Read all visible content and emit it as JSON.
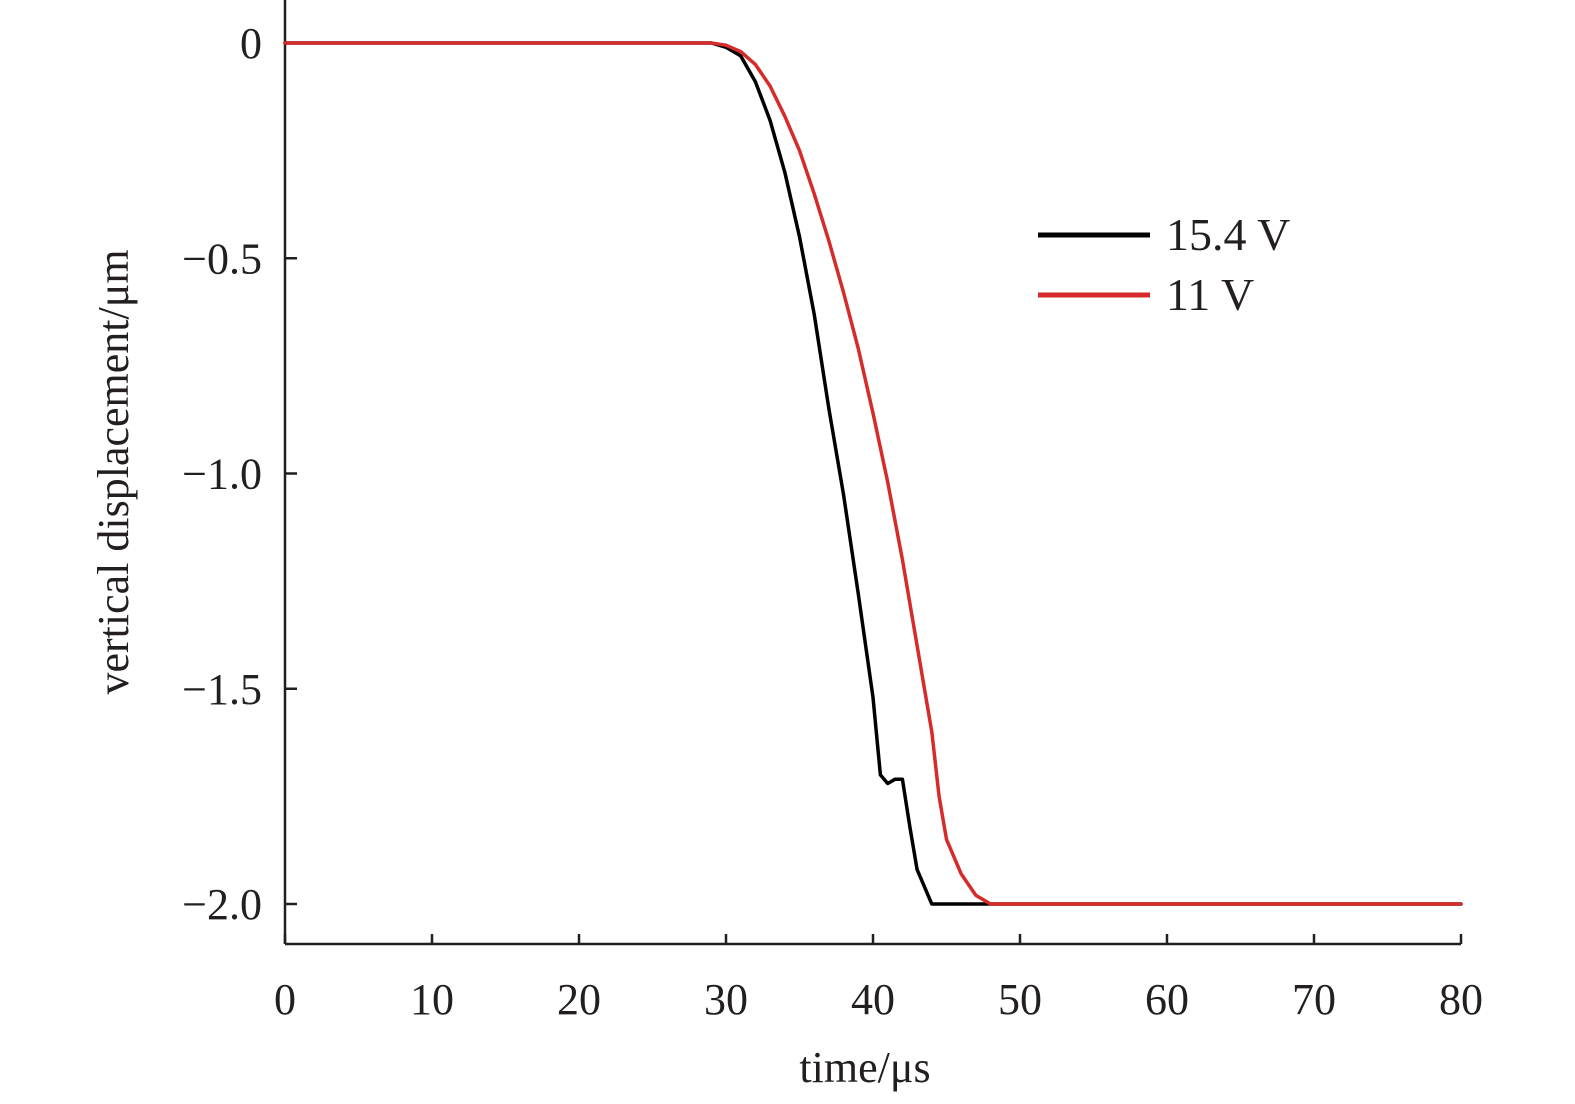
{
  "chart_data": {
    "type": "line",
    "title": "",
    "xlabel": "time/μs",
    "ylabel": "vertical displacement/μm",
    "xlim": [
      0,
      80
    ],
    "ylim": [
      -2.1,
      0.1
    ],
    "xticks": [
      0,
      10,
      20,
      30,
      40,
      50,
      60,
      70,
      80
    ],
    "xtick_labels": [
      "0",
      "10",
      "20",
      "30",
      "40",
      "50",
      "60",
      "70",
      "80"
    ],
    "yticks": [
      0,
      -0.5,
      -1.0,
      -1.5,
      -2.0
    ],
    "ytick_labels": [
      "0",
      "−0.5",
      "−1.0",
      "−1.5",
      "−2.0"
    ],
    "grid": false,
    "legend_position": "top-right",
    "series": [
      {
        "name": "15.4 V",
        "color": "#000000",
        "x": [
          0,
          28,
          29,
          30,
          31,
          32,
          33,
          34,
          35,
          36,
          37,
          38,
          39,
          40,
          40.5,
          41,
          41.5,
          42,
          42.5,
          43,
          44,
          45,
          46,
          48,
          80
        ],
        "y": [
          0,
          0,
          0,
          -0.01,
          -0.03,
          -0.09,
          -0.18,
          -0.3,
          -0.45,
          -0.63,
          -0.85,
          -1.05,
          -1.28,
          -1.52,
          -1.7,
          -1.72,
          -1.71,
          -1.71,
          -1.82,
          -1.92,
          -2.0,
          -2.0,
          -2.0,
          -2.0,
          -2.0
        ]
      },
      {
        "name": "11 V",
        "color": "#d52b2b",
        "x": [
          0,
          28,
          29,
          30,
          31,
          32,
          33,
          34,
          35,
          36,
          37,
          38,
          39,
          40,
          41,
          42,
          43,
          44,
          44.5,
          45,
          46,
          47,
          48,
          50,
          80
        ],
        "y": [
          0,
          0,
          0,
          -0.005,
          -0.02,
          -0.05,
          -0.1,
          -0.17,
          -0.25,
          -0.35,
          -0.46,
          -0.58,
          -0.71,
          -0.86,
          -1.02,
          -1.2,
          -1.4,
          -1.6,
          -1.75,
          -1.85,
          -1.93,
          -1.98,
          -2.0,
          -2.0,
          -2.0
        ]
      }
    ]
  }
}
